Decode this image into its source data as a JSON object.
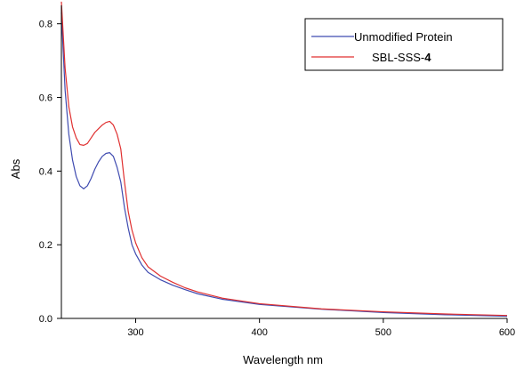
{
  "chart_data": {
    "type": "line",
    "title": "",
    "xlabel": "Wavelength nm",
    "ylabel": "Abs",
    "xlim": [
      240,
      600
    ],
    "ylim": [
      0,
      0.85
    ],
    "x_ticks": [
      300,
      400,
      500,
      600
    ],
    "x_tick_labels": [
      "300",
      "400",
      "500",
      "600"
    ],
    "y_ticks": [
      0.0,
      0.2,
      0.4,
      0.6,
      0.8
    ],
    "y_tick_labels": [
      "0.0",
      "0.2",
      "0.4",
      "0.6",
      "0.8"
    ],
    "grid": false,
    "legend_position": "top-right",
    "series": [
      {
        "name": "Unmodified Protein",
        "color": "#3f4bb0",
        "x": [
          240,
          243,
          246,
          249,
          252,
          255,
          258,
          261,
          264,
          267,
          270,
          273,
          276,
          279,
          282,
          285,
          288,
          291,
          294,
          297,
          300,
          305,
          310,
          320,
          330,
          340,
          350,
          370,
          400,
          450,
          500,
          550,
          600
        ],
        "y": [
          0.83,
          0.62,
          0.5,
          0.43,
          0.385,
          0.36,
          0.352,
          0.36,
          0.38,
          0.405,
          0.425,
          0.44,
          0.448,
          0.45,
          0.44,
          0.41,
          0.37,
          0.3,
          0.245,
          0.2,
          0.175,
          0.145,
          0.125,
          0.105,
          0.09,
          0.078,
          0.067,
          0.052,
          0.038,
          0.025,
          0.016,
          0.01,
          0.006
        ]
      },
      {
        "name": "SBL-SSS-4",
        "color": "#e03030",
        "x": [
          240,
          243,
          246,
          249,
          252,
          255,
          258,
          261,
          264,
          267,
          270,
          273,
          276,
          279,
          282,
          285,
          288,
          291,
          294,
          297,
          300,
          305,
          310,
          320,
          330,
          340,
          350,
          370,
          400,
          450,
          500,
          550,
          600
        ],
        "y": [
          0.86,
          0.68,
          0.575,
          0.52,
          0.49,
          0.472,
          0.47,
          0.475,
          0.49,
          0.505,
          0.515,
          0.525,
          0.532,
          0.535,
          0.525,
          0.5,
          0.46,
          0.37,
          0.29,
          0.24,
          0.205,
          0.165,
          0.14,
          0.115,
          0.098,
          0.083,
          0.072,
          0.055,
          0.04,
          0.026,
          0.018,
          0.012,
          0.008
        ]
      }
    ]
  },
  "legend": {
    "entries": [
      {
        "label": "Unmodified Protein",
        "color": "#3f4bb0"
      },
      {
        "label_prefix": "SBL-SSS-",
        "label_bold": "4",
        "color": "#e03030"
      }
    ]
  }
}
